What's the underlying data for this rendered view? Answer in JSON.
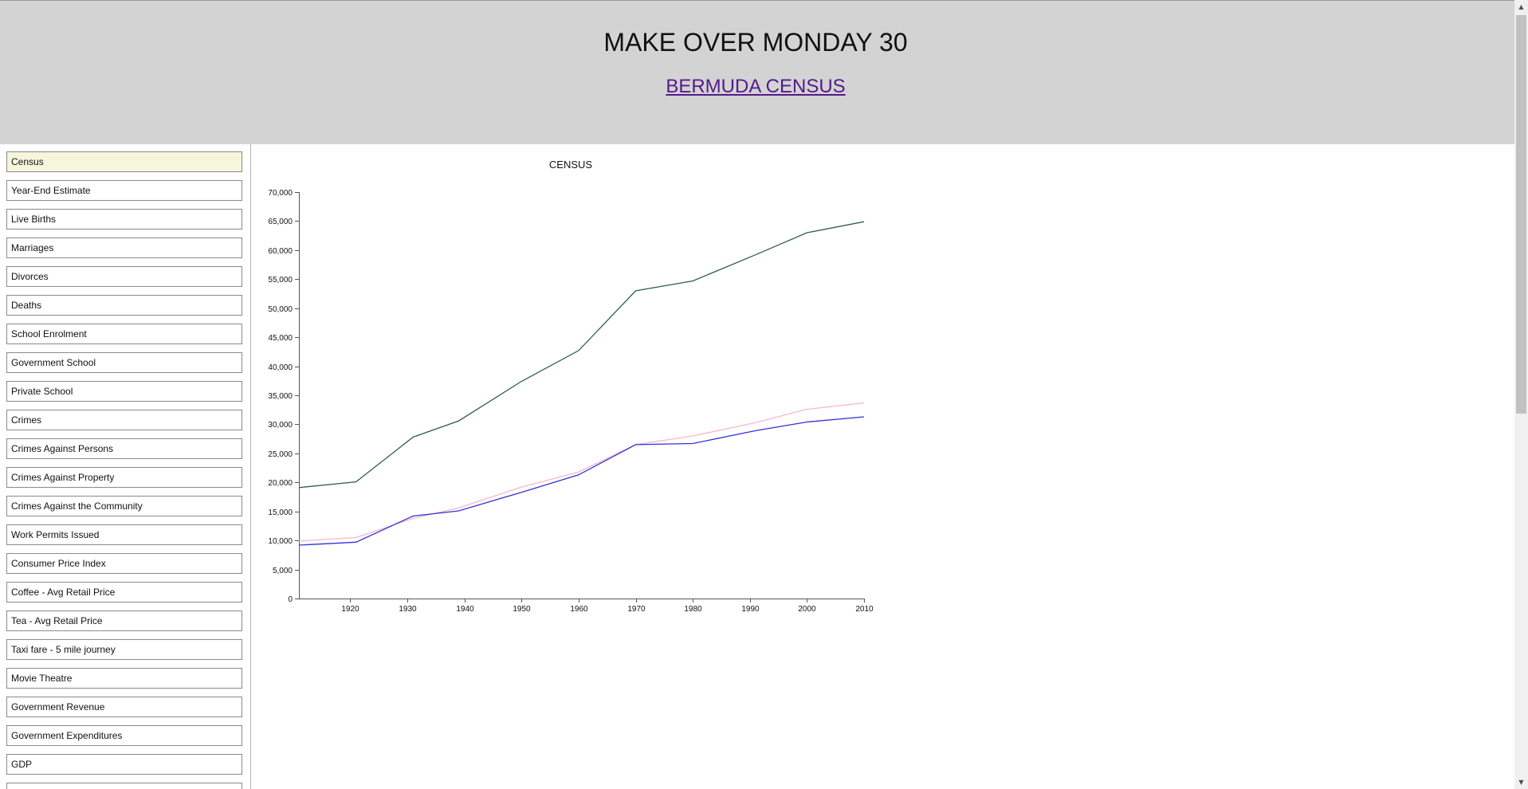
{
  "header": {
    "title": "MAKE OVER MONDAY 30",
    "subtitle": "BERMUDA CENSUS"
  },
  "sidebar": {
    "items": [
      {
        "label": "Census",
        "active": true
      },
      {
        "label": "Year-End Estimate"
      },
      {
        "label": "Live Births"
      },
      {
        "label": "Marriages"
      },
      {
        "label": "Divorces"
      },
      {
        "label": "Deaths"
      },
      {
        "label": "School Enrolment"
      },
      {
        "label": "Government School"
      },
      {
        "label": "Private School"
      },
      {
        "label": "Crimes"
      },
      {
        "label": "Crimes Against Persons"
      },
      {
        "label": "Crimes Against Property"
      },
      {
        "label": "Crimes Against the Community"
      },
      {
        "label": "Work Permits Issued"
      },
      {
        "label": "Consumer Price Index"
      },
      {
        "label": "Coffee - Avg Retail Price"
      },
      {
        "label": "Tea - Avg Retail Price"
      },
      {
        "label": "Taxi fare - 5 mile journey"
      },
      {
        "label": "Movie Theatre"
      },
      {
        "label": "Government Revenue"
      },
      {
        "label": "Government Expenditures"
      },
      {
        "label": "GDP"
      }
    ]
  },
  "chart_data": {
    "type": "line",
    "title": "CENSUS",
    "xlabel": "",
    "ylabel": "",
    "x": [
      1911,
      1921,
      1931,
      1939,
      1950,
      1960,
      1970,
      1980,
      1991,
      2000,
      2010
    ],
    "x_ticks": [
      1920,
      1930,
      1940,
      1950,
      1960,
      1970,
      1980,
      1990,
      2000,
      2010
    ],
    "xlim": [
      1911,
      2010
    ],
    "ylim": [
      0,
      70000
    ],
    "y_ticks": [
      0,
      5000,
      10000,
      15000,
      20000,
      25000,
      30000,
      35000,
      40000,
      45000,
      50000,
      55000,
      60000,
      65000,
      70000
    ],
    "y_tick_labels": [
      "0",
      "5,000",
      "10,000",
      "15,000",
      "20,000",
      "25,000",
      "30,000",
      "35,000",
      "40,000",
      "45,000",
      "50,000",
      "55,000",
      "60,000",
      "65,000",
      "70,000"
    ],
    "grid": false,
    "legend": "none",
    "series": [
      {
        "color": "#2d6148",
        "values": [
          19100,
          20100,
          27800,
          30600,
          37400,
          42700,
          53000,
          54700,
          59200,
          63000,
          64900
        ]
      },
      {
        "color": "#f5b8c8",
        "values": [
          9900,
          10500,
          13800,
          15600,
          19200,
          21800,
          26500,
          28000,
          30300,
          32600,
          33700
        ]
      },
      {
        "color": "#3232d8",
        "values": [
          9200,
          9700,
          14200,
          15100,
          18300,
          21300,
          26500,
          26700,
          28900,
          30400,
          31300
        ]
      }
    ]
  }
}
